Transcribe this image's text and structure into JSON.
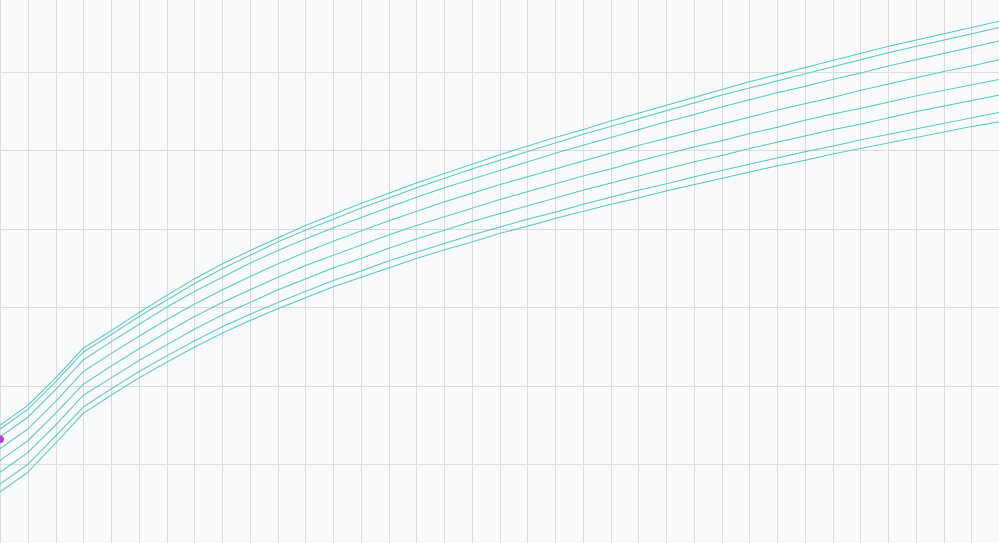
{
  "chart_data": {
    "type": "line",
    "title": "",
    "xlabel": "",
    "ylabel": "",
    "xlim": [
      0,
      36
    ],
    "ylim": [
      0,
      7
    ],
    "x_grid_step": 1,
    "y_grid_step": 1,
    "grid": true,
    "legend": "none",
    "colors": {
      "background": "#f8fafc",
      "grid": "#d9dde2",
      "curve": "#4fc9bd",
      "marker": "#b83fd0"
    },
    "x": [
      0,
      1,
      2,
      3,
      4,
      5,
      6,
      7,
      8,
      9,
      10,
      11,
      12,
      13,
      14,
      15,
      16,
      17,
      18,
      19,
      20,
      21,
      22,
      23,
      24,
      25,
      26,
      27,
      28,
      29,
      30,
      31,
      32,
      33,
      34,
      35,
      36
    ],
    "series": [
      {
        "values": [
          1.5,
          1.75,
          2.1,
          2.48,
          2.7,
          2.93,
          3.15,
          3.36,
          3.55,
          3.72,
          3.88,
          4.04,
          4.18,
          4.32,
          4.45,
          4.58,
          4.7,
          4.82,
          4.94,
          5.05,
          5.16,
          5.26,
          5.37,
          5.47,
          5.57,
          5.67,
          5.77,
          5.87,
          5.96,
          6.05,
          6.14,
          6.23,
          6.32,
          6.4,
          6.48,
          6.56,
          6.64
        ]
      },
      {
        "values": [
          1.45,
          1.7,
          2.05,
          2.43,
          2.65,
          2.88,
          3.09,
          3.3,
          3.49,
          3.66,
          3.83,
          3.98,
          4.12,
          4.26,
          4.39,
          4.52,
          4.64,
          4.76,
          4.87,
          4.98,
          5.09,
          5.2,
          5.3,
          5.4,
          5.5,
          5.6,
          5.7,
          5.79,
          5.88,
          5.97,
          6.06,
          6.15,
          6.24,
          6.32,
          6.4,
          6.48,
          6.56
        ]
      },
      {
        "values": [
          1.35,
          1.6,
          1.95,
          2.33,
          2.56,
          2.78,
          3.0,
          3.2,
          3.38,
          3.56,
          3.72,
          3.87,
          4.01,
          4.14,
          4.27,
          4.4,
          4.52,
          4.63,
          4.74,
          4.85,
          4.96,
          5.06,
          5.16,
          5.26,
          5.36,
          5.45,
          5.55,
          5.64,
          5.73,
          5.81,
          5.9,
          5.98,
          6.07,
          6.15,
          6.23,
          6.31,
          6.39
        ]
      },
      {
        "values": [
          1.2,
          1.45,
          1.8,
          2.18,
          2.41,
          2.63,
          2.84,
          3.04,
          3.22,
          3.39,
          3.55,
          3.7,
          3.84,
          3.97,
          4.1,
          4.22,
          4.34,
          4.45,
          4.56,
          4.66,
          4.76,
          4.86,
          4.96,
          5.06,
          5.15,
          5.24,
          5.33,
          5.42,
          5.51,
          5.59,
          5.67,
          5.76,
          5.84,
          5.92,
          6.0,
          6.07,
          6.15
        ]
      },
      {
        "values": [
          1.05,
          1.3,
          1.65,
          2.02,
          2.25,
          2.47,
          2.68,
          2.88,
          3.06,
          3.22,
          3.38,
          3.53,
          3.66,
          3.79,
          3.92,
          4.04,
          4.15,
          4.26,
          4.37,
          4.47,
          4.57,
          4.67,
          4.76,
          4.86,
          4.95,
          5.04,
          5.12,
          5.21,
          5.29,
          5.38,
          5.46,
          5.53,
          5.61,
          5.69,
          5.76,
          5.83,
          5.9
        ]
      },
      {
        "values": [
          0.9,
          1.15,
          1.5,
          1.88,
          2.1,
          2.32,
          2.52,
          2.72,
          2.9,
          3.06,
          3.22,
          3.36,
          3.5,
          3.62,
          3.75,
          3.87,
          3.98,
          4.09,
          4.19,
          4.29,
          4.39,
          4.49,
          4.58,
          4.67,
          4.76,
          4.85,
          4.93,
          5.02,
          5.1,
          5.18,
          5.26,
          5.33,
          5.41,
          5.49,
          5.56,
          5.63,
          5.7
        ]
      },
      {
        "values": [
          0.75,
          1.0,
          1.36,
          1.73,
          1.96,
          2.18,
          2.38,
          2.57,
          2.75,
          2.91,
          3.06,
          3.2,
          3.34,
          3.46,
          3.59,
          3.7,
          3.81,
          3.92,
          4.02,
          4.12,
          4.21,
          4.31,
          4.4,
          4.49,
          4.57,
          4.66,
          4.74,
          4.82,
          4.9,
          4.98,
          5.05,
          5.13,
          5.2,
          5.27,
          5.34,
          5.41,
          5.48
        ]
      },
      {
        "values": [
          0.65,
          0.9,
          1.27,
          1.65,
          1.88,
          2.1,
          2.3,
          2.49,
          2.67,
          2.83,
          2.98,
          3.12,
          3.26,
          3.38,
          3.5,
          3.62,
          3.73,
          3.83,
          3.94,
          4.03,
          4.13,
          4.22,
          4.31,
          4.39,
          4.48,
          4.56,
          4.64,
          4.72,
          4.8,
          4.87,
          4.95,
          5.02,
          5.09,
          5.16,
          5.23,
          5.3,
          5.36
        ]
      }
    ],
    "points": [
      {
        "x": 0,
        "y": 1.32
      }
    ]
  }
}
